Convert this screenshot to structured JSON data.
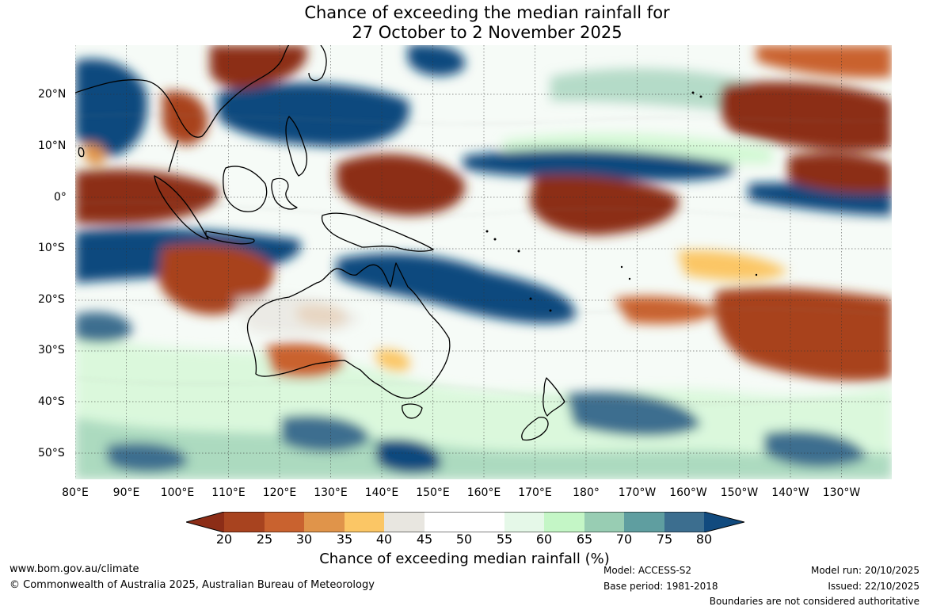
{
  "title": {
    "line1": "Chance of exceeding the median rainfall for",
    "line2": "27 October to 2 November 2025"
  },
  "map": {
    "lat_labels": [
      "20°N",
      "10°N",
      "0°",
      "10°S",
      "20°S",
      "30°S",
      "40°S",
      "50°S"
    ],
    "lon_labels": [
      "80°E",
      "90°E",
      "100°E",
      "110°E",
      "120°E",
      "130°E",
      "140°E",
      "150°E",
      "160°E",
      "170°E",
      "180°",
      "170°W",
      "160°W",
      "150°W",
      "140°W",
      "130°W"
    ]
  },
  "legend": {
    "title": "Chance of exceeding median rainfall (%)",
    "ticks": [
      "20",
      "25",
      "30",
      "35",
      "40",
      "45",
      "50",
      "55",
      "60",
      "65",
      "70",
      "75",
      "80"
    ],
    "colors": [
      "#8c2d17",
      "#a8431f",
      "#c9622f",
      "#e0944a",
      "#fbc665",
      "#e8e6e0",
      "#ffffff",
      "#ffffff",
      "#e5f8e8",
      "#c4f6c6",
      "#98cdb3",
      "#5f9ea0",
      "#3c6e8f",
      "#114a7e"
    ]
  },
  "footer": {
    "website": "www.bom.gov.au/climate",
    "copyright": "© Commonwealth of Australia 2025, Australian Bureau of Meteorology",
    "model": "Model: ACCESS-S2",
    "base_period": "Base period: 1981-2018",
    "model_run": "Model run: 20/10/2025",
    "issued": "Issued: 22/10/2025",
    "disclaimer": "Boundaries are not considered authoritative"
  }
}
